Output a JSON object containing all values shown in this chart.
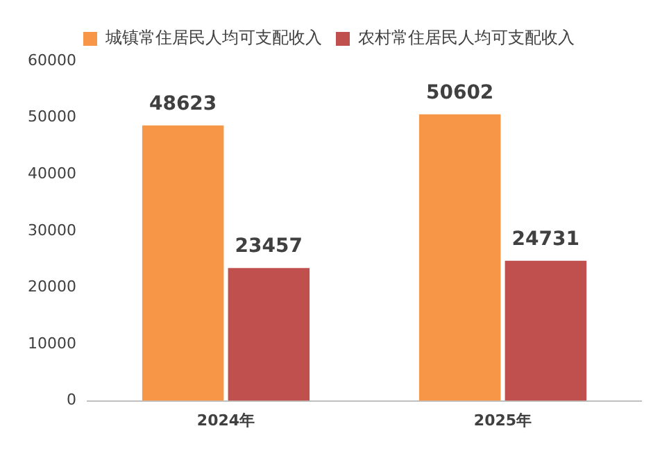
{
  "chart_data": {
    "type": "bar",
    "categories": [
      "2024年",
      "2025年"
    ],
    "series": [
      {
        "name": "城镇常住居民人均可支配收入",
        "color": "#f79646",
        "values": [
          48623,
          50602
        ]
      },
      {
        "name": "农村常住居民人均可支配收入",
        "color": "#c0504d",
        "values": [
          23457,
          24731
        ]
      }
    ],
    "ylim": [
      0,
      60000
    ],
    "yticks": [
      0,
      10000,
      20000,
      30000,
      40000,
      50000,
      60000
    ],
    "grid": false,
    "legend": "top",
    "data_labels": true
  }
}
